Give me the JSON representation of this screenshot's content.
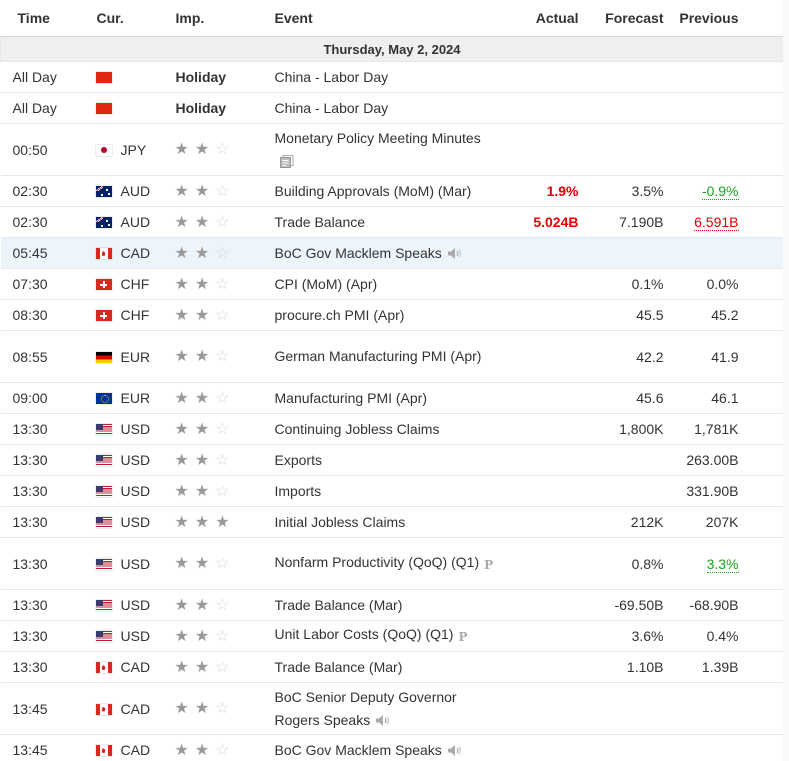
{
  "headers": {
    "time": "Time",
    "cur": "Cur.",
    "imp": "Imp.",
    "event": "Event",
    "actual": "Actual",
    "forecast": "Forecast",
    "previous": "Previous"
  },
  "date_label": "Thursday, May 2, 2024",
  "rows": [
    {
      "time": "All Day",
      "cur": "",
      "flag": "cn",
      "imp": 0,
      "holiday": "Holiday",
      "event": "China - Labor Day",
      "actual": "",
      "forecast": "",
      "previous": ""
    },
    {
      "time": "All Day",
      "cur": "",
      "flag": "cn",
      "imp": 0,
      "holiday": "Holiday",
      "event": "China - Labor Day",
      "actual": "",
      "forecast": "",
      "previous": ""
    },
    {
      "time": "00:50",
      "cur": "JPY",
      "flag": "jp",
      "imp": 2,
      "event": "Monetary Policy Meeting Minutes",
      "icon": "report",
      "actual": "",
      "forecast": "",
      "previous": ""
    },
    {
      "time": "02:30",
      "cur": "AUD",
      "flag": "au",
      "imp": 2,
      "event": "Building Approvals (MoM) (Mar)",
      "actual": "1.9%",
      "actual_style": "red",
      "forecast": "3.5%",
      "previous": "-0.9%",
      "previous_style": "green"
    },
    {
      "time": "02:30",
      "cur": "AUD",
      "flag": "au",
      "imp": 2,
      "event": "Trade Balance",
      "actual": "5.024B",
      "actual_style": "red",
      "forecast": "7.190B",
      "previous": "6.591B",
      "previous_style": "red"
    },
    {
      "time": "05:45",
      "cur": "CAD",
      "flag": "ca",
      "imp": 2,
      "event": "BoC Gov Macklem Speaks",
      "icon": "speaker",
      "actual": "",
      "forecast": "",
      "previous": "",
      "highlight": true
    },
    {
      "time": "07:30",
      "cur": "CHF",
      "flag": "ch",
      "imp": 2,
      "event": "CPI (MoM) (Apr)",
      "actual": "",
      "forecast": "0.1%",
      "previous": "0.0%"
    },
    {
      "time": "08:30",
      "cur": "CHF",
      "flag": "ch",
      "imp": 2,
      "event": "procure.ch PMI (Apr)",
      "actual": "",
      "forecast": "45.5",
      "previous": "45.2"
    },
    {
      "time": "08:55",
      "cur": "EUR",
      "flag": "de",
      "imp": 2,
      "event": "German Manufacturing PMI (Apr)",
      "actual": "",
      "forecast": "42.2",
      "previous": "41.9"
    },
    {
      "time": "09:00",
      "cur": "EUR",
      "flag": "eu",
      "imp": 2,
      "event": "Manufacturing PMI (Apr)",
      "actual": "",
      "forecast": "45.6",
      "previous": "46.1"
    },
    {
      "time": "13:30",
      "cur": "USD",
      "flag": "us",
      "imp": 2,
      "event": "Continuing Jobless Claims",
      "actual": "",
      "forecast": "1,800K",
      "previous": "1,781K"
    },
    {
      "time": "13:30",
      "cur": "USD",
      "flag": "us",
      "imp": 2,
      "event": "Exports",
      "actual": "",
      "forecast": "",
      "previous": "263.00B"
    },
    {
      "time": "13:30",
      "cur": "USD",
      "flag": "us",
      "imp": 2,
      "event": "Imports",
      "actual": "",
      "forecast": "",
      "previous": "331.90B"
    },
    {
      "time": "13:30",
      "cur": "USD",
      "flag": "us",
      "imp": 3,
      "event": "Initial Jobless Claims",
      "actual": "",
      "forecast": "212K",
      "previous": "207K",
      "marked": true
    },
    {
      "time": "13:30",
      "cur": "USD",
      "flag": "us",
      "imp": 2,
      "event": "Nonfarm Productivity (QoQ) (Q1)",
      "icon": "preliminary",
      "actual": "",
      "forecast": "0.8%",
      "previous": "3.3%",
      "previous_style": "green"
    },
    {
      "time": "13:30",
      "cur": "USD",
      "flag": "us",
      "imp": 2,
      "event": "Trade Balance (Mar)",
      "actual": "",
      "forecast": "-69.50B",
      "previous": "-68.90B"
    },
    {
      "time": "13:30",
      "cur": "USD",
      "flag": "us",
      "imp": 2,
      "event": "Unit Labor Costs (QoQ) (Q1)",
      "icon": "preliminary",
      "actual": "",
      "forecast": "3.6%",
      "previous": "0.4%"
    },
    {
      "time": "13:30",
      "cur": "CAD",
      "flag": "ca",
      "imp": 2,
      "event": "Trade Balance (Mar)",
      "actual": "",
      "forecast": "1.10B",
      "previous": "1.39B"
    },
    {
      "time": "13:45",
      "cur": "CAD",
      "flag": "ca",
      "imp": 2,
      "event": "BoC Senior Deputy Governor Rogers Speaks",
      "icon": "speaker",
      "actual": "",
      "forecast": "",
      "previous": ""
    },
    {
      "time": "13:45",
      "cur": "CAD",
      "flag": "ca",
      "imp": 2,
      "event": "BoC Gov Macklem Speaks",
      "icon": "speaker",
      "actual": "",
      "forecast": "",
      "previous": ""
    }
  ],
  "preliminary_symbol": "P",
  "colors": {
    "actual_red": "#e60000",
    "previous_green": "#18a318",
    "highlight_row": "#edf5fc",
    "time_marker": "#55ee22"
  }
}
